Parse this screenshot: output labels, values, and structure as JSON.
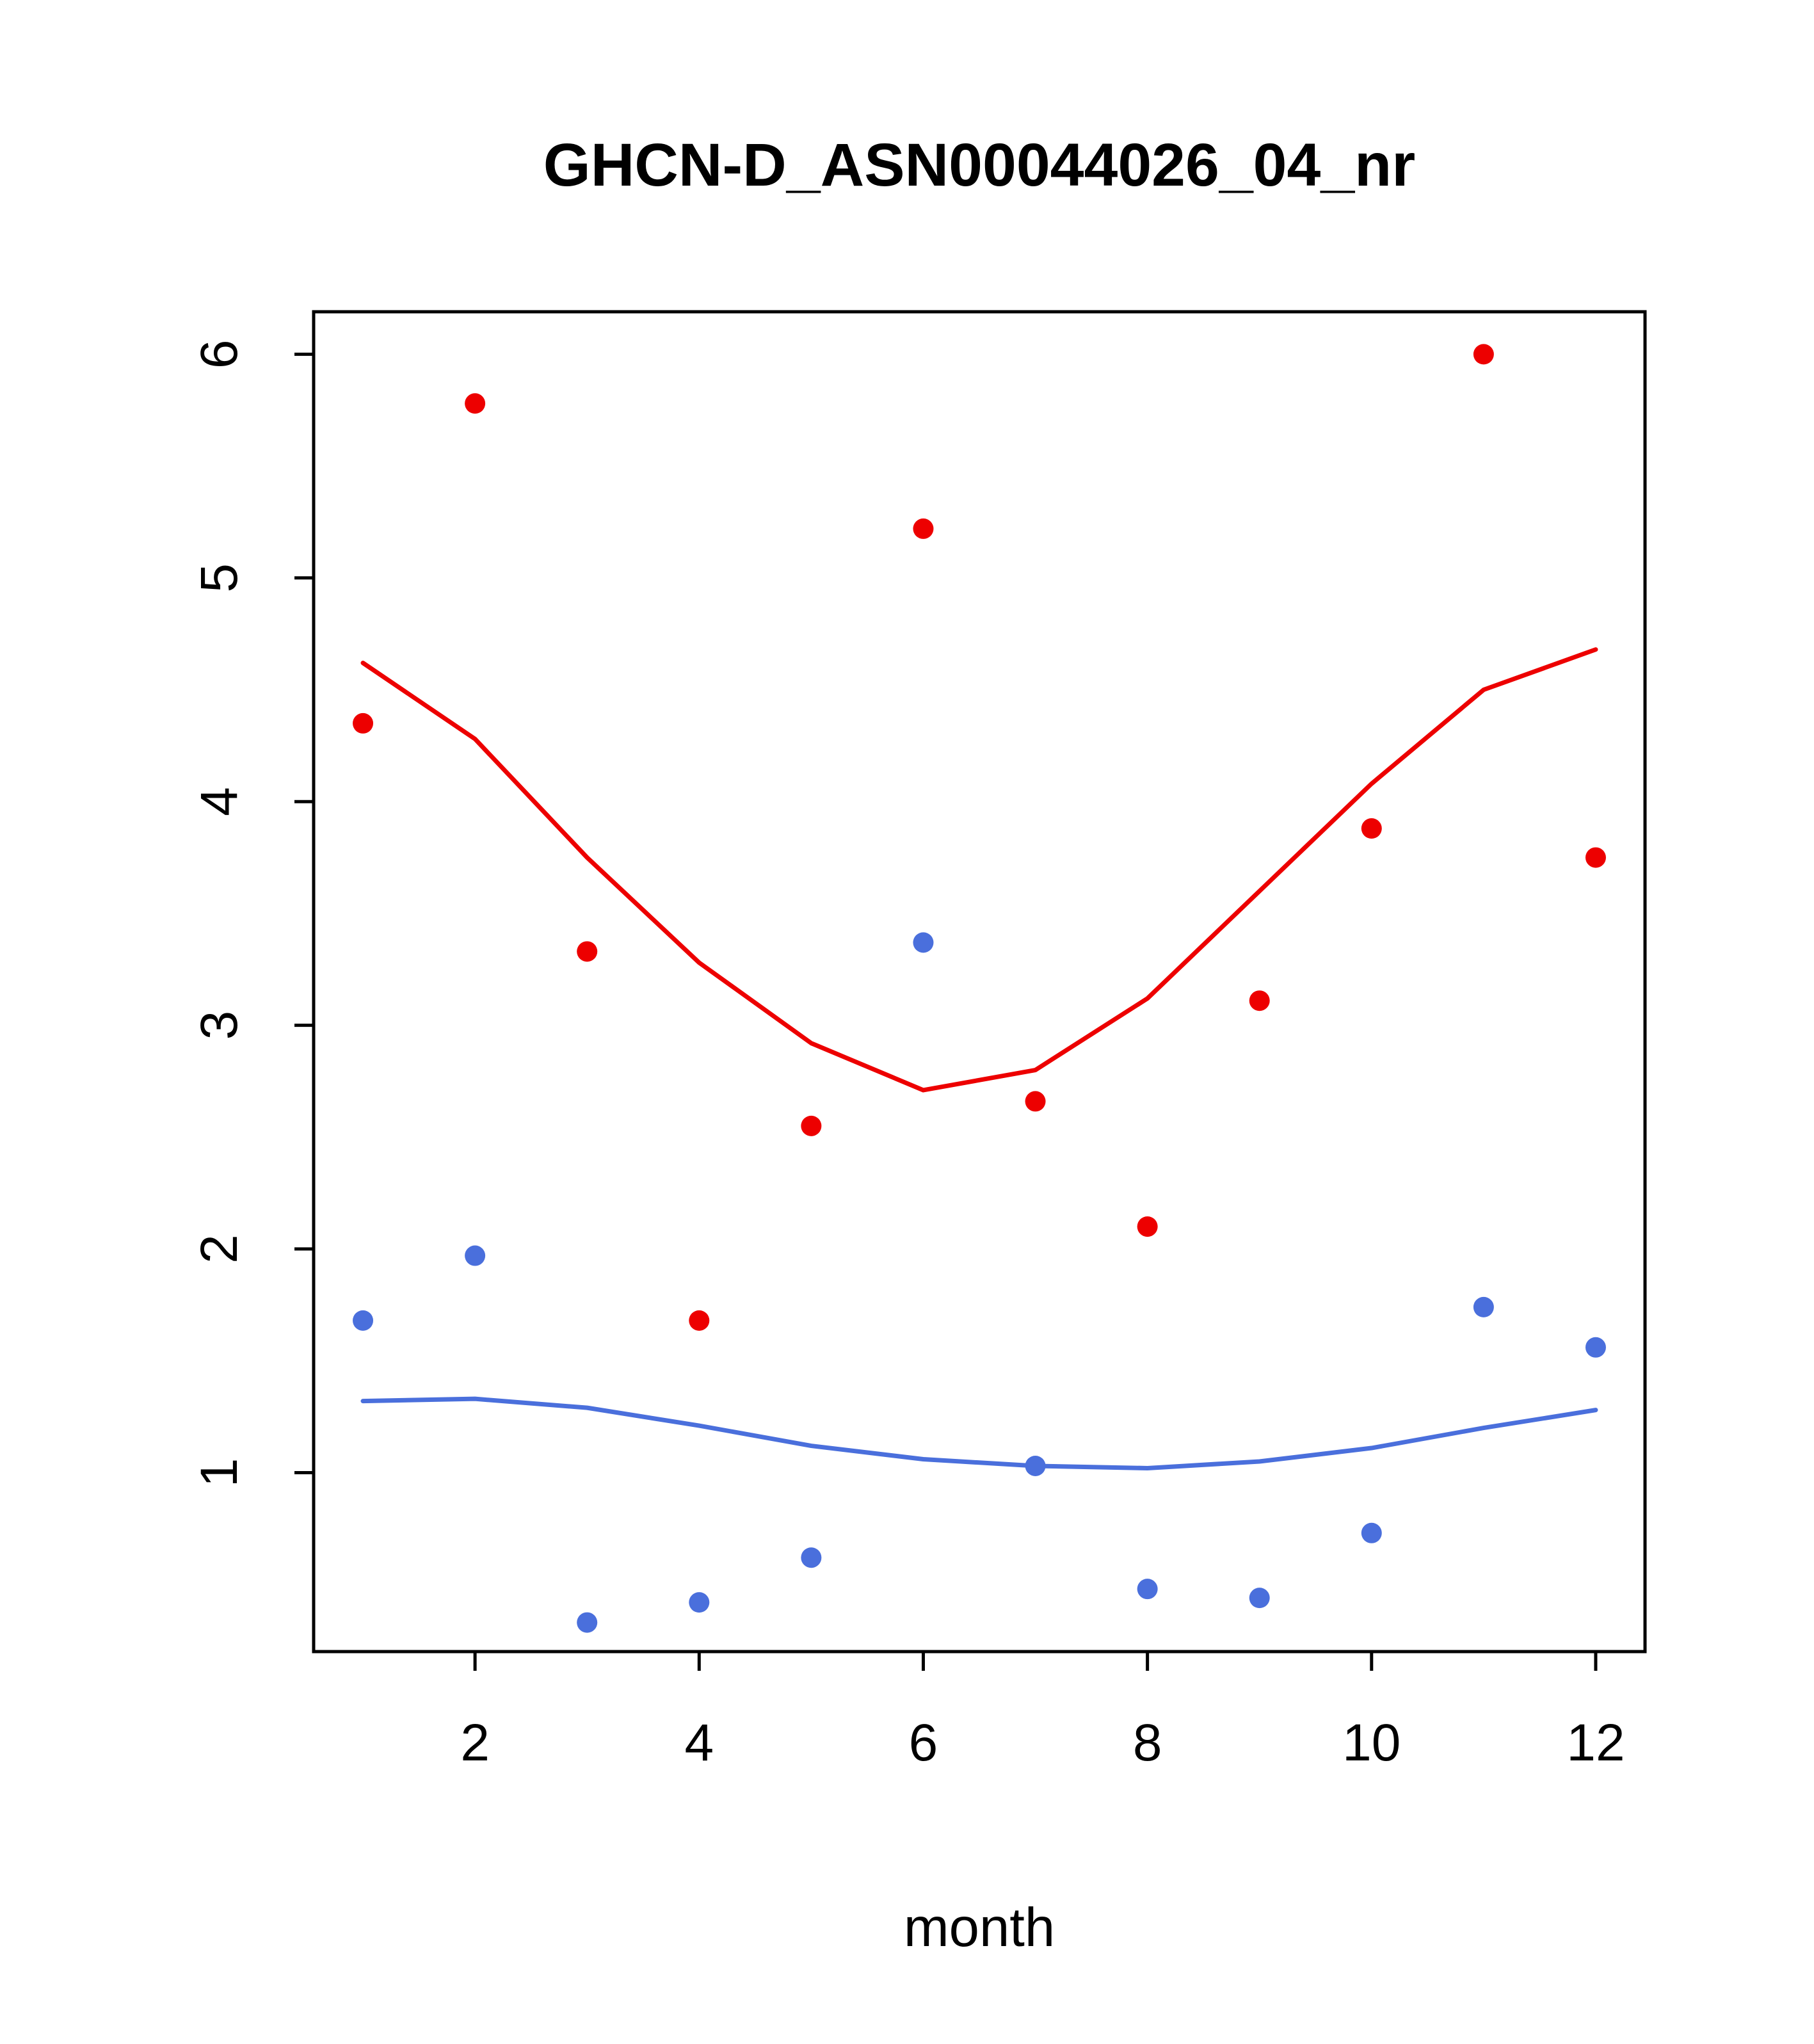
{
  "page": {
    "background": "#ffffff"
  },
  "colors": {
    "red_series": "#ed0000",
    "blue_series": "#4a6fdc",
    "axis": "#000000"
  },
  "chart_data": {
    "type": "scatter",
    "title": "GHCN-D_ASN00044026_04_nr",
    "xlabel": "month",
    "ylabel": "",
    "xlim": [
      0.56,
      12.44
    ],
    "ylim": [
      0.2,
      6.19
    ],
    "x_ticks": [
      2,
      4,
      6,
      8,
      10,
      12
    ],
    "y_ticks": [
      1,
      2,
      3,
      4,
      5,
      6
    ],
    "grid": false,
    "legend": "none",
    "x": [
      1,
      2,
      3,
      4,
      5,
      6,
      7,
      8,
      9,
      10,
      11,
      12
    ],
    "series": [
      {
        "name": "red-points",
        "kind": "points",
        "color": "#ed0000",
        "values": [
          4.35,
          5.78,
          3.33,
          1.68,
          2.55,
          5.22,
          2.66,
          2.1,
          3.11,
          3.88,
          6.0,
          3.75
        ]
      },
      {
        "name": "blue-points",
        "kind": "points",
        "color": "#4a6fdc",
        "values": [
          1.68,
          1.97,
          0.33,
          0.42,
          0.62,
          3.37,
          1.03,
          0.48,
          0.44,
          0.73,
          1.74,
          1.56
        ]
      },
      {
        "name": "red-smooth-line",
        "kind": "line",
        "color": "#ed0000",
        "values": [
          4.62,
          4.28,
          3.75,
          3.28,
          2.92,
          2.71,
          2.8,
          3.12,
          3.6,
          4.08,
          4.5,
          4.68
        ]
      },
      {
        "name": "blue-smooth-line",
        "kind": "line",
        "color": "#4a6fdc",
        "values": [
          1.32,
          1.33,
          1.29,
          1.21,
          1.12,
          1.06,
          1.03,
          1.02,
          1.05,
          1.11,
          1.2,
          1.28
        ]
      }
    ]
  }
}
